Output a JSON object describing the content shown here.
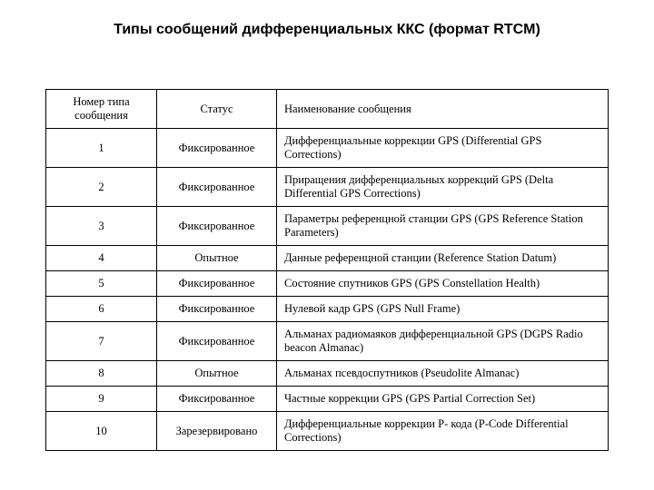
{
  "title": "Типы сообщений дифференциальных ККС (формат RTCM)",
  "table": {
    "columns": [
      "Номер типа сообщения",
      "Статус",
      "Наименование сообщения"
    ],
    "rows": [
      [
        "1",
        "Фиксированное",
        "Дифференциальные коррекции GPS (Differential GPS Corrections)"
      ],
      [
        "2",
        "Фиксированное",
        "Приращения дифференциальных коррекций GPS (Delta Differential GPS Corrections)"
      ],
      [
        "3",
        "Фиксированное",
        "Параметры референцной станции GPS (GPS Reference Station Parameters)"
      ],
      [
        "4",
        "Опытное",
        "Данные референцной станции (Reference Station Datum)"
      ],
      [
        "5",
        "Фиксированное",
        "Состояние спутников GPS (GPS Constellation Health)"
      ],
      [
        "6",
        "Фиксированное",
        "Нулевой кадр GPS  (GPS Null Frame)"
      ],
      [
        "7",
        "Фиксированное",
        "Альманах радиомаяков дифференциальной GPS (DGPS Radio beacon Almanac)"
      ],
      [
        "8",
        "Опытное",
        "Альманах псевдоспутников (Pseudolite Almanac)"
      ],
      [
        "9",
        "Фиксированное",
        "Частные коррекции GPS (GPS Partial Correction Set)"
      ],
      [
        "10",
        "Зарезервировано",
        "Дифференциальные коррекции  P- кода (P-Code Differential Corrections)"
      ]
    ]
  }
}
